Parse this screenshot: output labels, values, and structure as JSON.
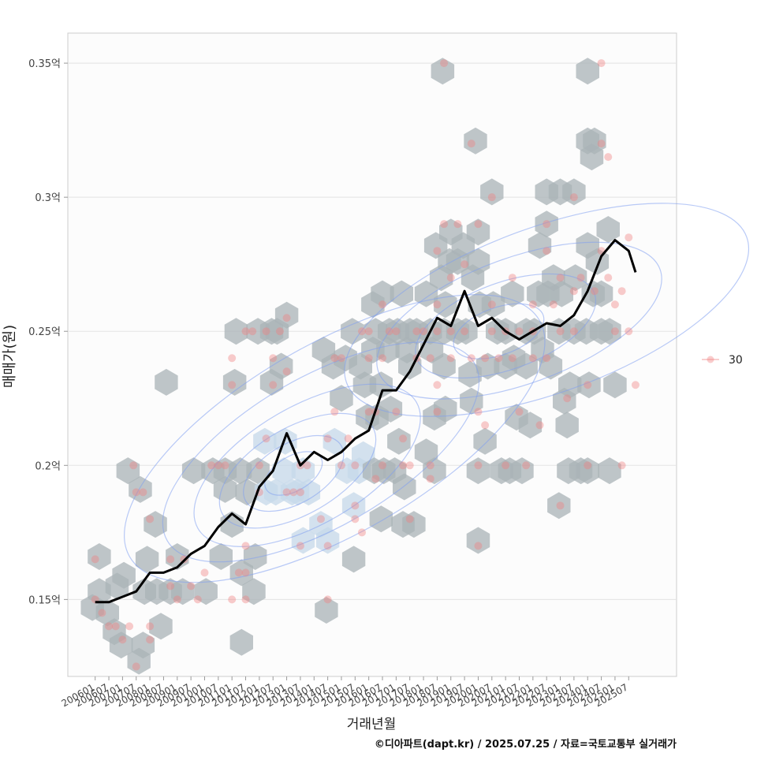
{
  "chart_data": {
    "type": "scatter",
    "xlabel": "거래년월",
    "ylabel": "매매가(원)",
    "caption": "©디아파트(dapt.kr) / 2025.07.25 / 자료=국토교통부 실거래가",
    "x_ticks": [
      "200601",
      "200607",
      "200701",
      "200707",
      "200801",
      "200807",
      "200901",
      "200907",
      "201001",
      "201007",
      "201101",
      "201107",
      "201201",
      "201207",
      "201301",
      "201307",
      "201401",
      "201407",
      "201501",
      "201507",
      "201601",
      "201607",
      "201701",
      "201707",
      "201801",
      "201807",
      "201901",
      "201907",
      "202001",
      "202007",
      "202101",
      "202107",
      "202201",
      "202207",
      "202301",
      "202307",
      "202401",
      "202407",
      "202501",
      "202507"
    ],
    "y_ticks": [
      {
        "value": 0.15,
        "label": "0.15억"
      },
      {
        "value": 0.2,
        "label": "0.2억"
      },
      {
        "value": 0.25,
        "label": "0.25억"
      },
      {
        "value": 0.3,
        "label": "0.3억"
      },
      {
        "value": 0.35,
        "label": "0.35억"
      }
    ],
    "ylim": [
      0.1213,
      0.3612
    ],
    "xlim_index": [
      -2,
      42.5
    ],
    "grid": true,
    "legend": {
      "position": "right",
      "entries": [
        {
          "label": "30",
          "color": "#f08080"
        }
      ]
    },
    "colors": {
      "points": "#f08080",
      "hex": "#a9b3b7",
      "hex_light": "#c6d8ea",
      "contour": "#7f9ef0",
      "line": "#000000"
    },
    "moving_average": [
      [
        0,
        0.149
      ],
      [
        1,
        0.149
      ],
      [
        2,
        0.151
      ],
      [
        3,
        0.153
      ],
      [
        4,
        0.16
      ],
      [
        5,
        0.16
      ],
      [
        6,
        0.162
      ],
      [
        7,
        0.167
      ],
      [
        8,
        0.17
      ],
      [
        9,
        0.177
      ],
      [
        10,
        0.182
      ],
      [
        11,
        0.178
      ],
      [
        12,
        0.192
      ],
      [
        13,
        0.198
      ],
      [
        14,
        0.212
      ],
      [
        15,
        0.2
      ],
      [
        16,
        0.205
      ],
      [
        17,
        0.202
      ],
      [
        18,
        0.205
      ],
      [
        19,
        0.21
      ],
      [
        20,
        0.213
      ],
      [
        21,
        0.228
      ],
      [
        22,
        0.228
      ],
      [
        23,
        0.235
      ],
      [
        24,
        0.245
      ],
      [
        25,
        0.255
      ],
      [
        26,
        0.252
      ],
      [
        27,
        0.265
      ],
      [
        28,
        0.252
      ],
      [
        29,
        0.255
      ],
      [
        30,
        0.25
      ],
      [
        31,
        0.247
      ],
      [
        32,
        0.25
      ],
      [
        33,
        0.253
      ],
      [
        34,
        0.252
      ],
      [
        35,
        0.256
      ],
      [
        36,
        0.265
      ],
      [
        37,
        0.278
      ],
      [
        38,
        0.284
      ],
      [
        39,
        0.28
      ],
      [
        39.5,
        0.272
      ]
    ],
    "points": [
      [
        0,
        0.165
      ],
      [
        0,
        0.15
      ],
      [
        0.5,
        0.145
      ],
      [
        1,
        0.14
      ],
      [
        1.5,
        0.14
      ],
      [
        2,
        0.135
      ],
      [
        2.5,
        0.14
      ],
      [
        3,
        0.125
      ],
      [
        3,
        0.19
      ],
      [
        3.5,
        0.19
      ],
      [
        4,
        0.18
      ],
      [
        4,
        0.14
      ],
      [
        4,
        0.135
      ],
      [
        2.8,
        0.2
      ],
      [
        5.5,
        0.155
      ],
      [
        6,
        0.15
      ],
      [
        6.5,
        0.165
      ],
      [
        5.5,
        0.165
      ],
      [
        7,
        0.155
      ],
      [
        7.5,
        0.15
      ],
      [
        8,
        0.16
      ],
      [
        8.5,
        0.2
      ],
      [
        9,
        0.2
      ],
      [
        9.5,
        0.2
      ],
      [
        10,
        0.15
      ],
      [
        10,
        0.23
      ],
      [
        10,
        0.24
      ],
      [
        10.5,
        0.16
      ],
      [
        11,
        0.17
      ],
      [
        11,
        0.15
      ],
      [
        11,
        0.16
      ],
      [
        11,
        0.25
      ],
      [
        11.5,
        0.25
      ],
      [
        12,
        0.2
      ],
      [
        12,
        0.19
      ],
      [
        12.5,
        0.21
      ],
      [
        13,
        0.24
      ],
      [
        13.5,
        0.25
      ],
      [
        12.5,
        0.25
      ],
      [
        13,
        0.23
      ],
      [
        14,
        0.255
      ],
      [
        14,
        0.235
      ],
      [
        14,
        0.19
      ],
      [
        14.5,
        0.19
      ],
      [
        15,
        0.19
      ],
      [
        15,
        0.2
      ],
      [
        15.5,
        0.2
      ],
      [
        15,
        0.17
      ],
      [
        16.5,
        0.18
      ],
      [
        17,
        0.17
      ],
      [
        17,
        0.21
      ],
      [
        17.5,
        0.22
      ],
      [
        17.5,
        0.24
      ],
      [
        18,
        0.24
      ],
      [
        17,
        0.15
      ],
      [
        18,
        0.2
      ],
      [
        18.5,
        0.21
      ],
      [
        19,
        0.2
      ],
      [
        19,
        0.185
      ],
      [
        19,
        0.18
      ],
      [
        19.5,
        0.175
      ],
      [
        19.5,
        0.25
      ],
      [
        20,
        0.25
      ],
      [
        20,
        0.22
      ],
      [
        20,
        0.24
      ],
      [
        20.5,
        0.22
      ],
      [
        20.5,
        0.195
      ],
      [
        21,
        0.2
      ],
      [
        21,
        0.24
      ],
      [
        21,
        0.26
      ],
      [
        21.5,
        0.25
      ],
      [
        22,
        0.22
      ],
      [
        22,
        0.25
      ],
      [
        22.5,
        0.21
      ],
      [
        22.5,
        0.2
      ],
      [
        23,
        0.18
      ],
      [
        23,
        0.2
      ],
      [
        23.5,
        0.24
      ],
      [
        23.5,
        0.25
      ],
      [
        24,
        0.25
      ],
      [
        24.5,
        0.24
      ],
      [
        24.5,
        0.2
      ],
      [
        24.5,
        0.195
      ],
      [
        25,
        0.22
      ],
      [
        25,
        0.23
      ],
      [
        25,
        0.25
      ],
      [
        25,
        0.26
      ],
      [
        25,
        0.28
      ],
      [
        25.5,
        0.35
      ],
      [
        25.5,
        0.29
      ],
      [
        26,
        0.25
      ],
      [
        26,
        0.24
      ],
      [
        26,
        0.27
      ],
      [
        26.5,
        0.29
      ],
      [
        27,
        0.25
      ],
      [
        27,
        0.275
      ],
      [
        27.5,
        0.32
      ],
      [
        27.5,
        0.24
      ],
      [
        28,
        0.29
      ],
      [
        28,
        0.22
      ],
      [
        28,
        0.2
      ],
      [
        28,
        0.17
      ],
      [
        28.5,
        0.215
      ],
      [
        28.5,
        0.24
      ],
      [
        29,
        0.25
      ],
      [
        29,
        0.26
      ],
      [
        29,
        0.3
      ],
      [
        29.5,
        0.24
      ],
      [
        30,
        0.25
      ],
      [
        30,
        0.2
      ],
      [
        30.5,
        0.24
      ],
      [
        30.5,
        0.27
      ],
      [
        31,
        0.22
      ],
      [
        31,
        0.25
      ],
      [
        31.5,
        0.2
      ],
      [
        32,
        0.25
      ],
      [
        32,
        0.26
      ],
      [
        32,
        0.24
      ],
      [
        32.5,
        0.215
      ],
      [
        33,
        0.29
      ],
      [
        33,
        0.28
      ],
      [
        33,
        0.24
      ],
      [
        33.5,
        0.26
      ],
      [
        34,
        0.27
      ],
      [
        34,
        0.25
      ],
      [
        34,
        0.185
      ],
      [
        34.5,
        0.225
      ],
      [
        35,
        0.25
      ],
      [
        35,
        0.265
      ],
      [
        35,
        0.3
      ],
      [
        35.5,
        0.27
      ],
      [
        36,
        0.23
      ],
      [
        36,
        0.2
      ],
      [
        36.5,
        0.265
      ],
      [
        37,
        0.35
      ],
      [
        37,
        0.32
      ],
      [
        37,
        0.28
      ],
      [
        37.5,
        0.315
      ],
      [
        37.5,
        0.27
      ],
      [
        38,
        0.26
      ],
      [
        38,
        0.25
      ],
      [
        38.5,
        0.265
      ],
      [
        38.5,
        0.2
      ],
      [
        39,
        0.285
      ],
      [
        39,
        0.25
      ],
      [
        39.5,
        0.23
      ]
    ],
    "hexbins": [
      [
        -0.2,
        0.147
      ],
      [
        0.3,
        0.166
      ],
      [
        0.3,
        0.153
      ],
      [
        0.9,
        0.145
      ],
      [
        1.4,
        0.138
      ],
      [
        1.6,
        0.155
      ],
      [
        1.9,
        0.133
      ],
      [
        2.4,
        0.198
      ],
      [
        2.1,
        0.159
      ],
      [
        3.2,
        0.127
      ],
      [
        3.3,
        0.191
      ],
      [
        3.5,
        0.133
      ],
      [
        3.8,
        0.165
      ],
      [
        3.6,
        0.153
      ],
      [
        4.4,
        0.178
      ],
      [
        4.5,
        0.153
      ],
      [
        4.8,
        0.14
      ],
      [
        5.2,
        0.231
      ],
      [
        5.5,
        0.153
      ],
      [
        6.0,
        0.166
      ],
      [
        6.4,
        0.153
      ],
      [
        7.2,
        0.198
      ],
      [
        8.1,
        0.153
      ],
      [
        8.6,
        0.198
      ],
      [
        9.2,
        0.166
      ],
      [
        9.5,
        0.198
      ],
      [
        9.5,
        0.191
      ],
      [
        10.0,
        0.178
      ],
      [
        10.2,
        0.231
      ],
      [
        10.3,
        0.25
      ],
      [
        10.6,
        0.198
      ],
      [
        10.7,
        0.16
      ],
      [
        10.7,
        0.134
      ],
      [
        11.1,
        0.19
      ],
      [
        11.6,
        0.153
      ],
      [
        11.7,
        0.166
      ],
      [
        11.9,
        0.198
      ],
      [
        11.9,
        0.25
      ],
      [
        12.4,
        0.209
      ],
      [
        12.5,
        0.19
      ],
      [
        12.9,
        0.231
      ],
      [
        12.9,
        0.25
      ],
      [
        13.2,
        0.19
      ],
      [
        13.3,
        0.25
      ],
      [
        13.6,
        0.237
      ],
      [
        13.8,
        0.198
      ],
      [
        13.9,
        0.209
      ],
      [
        14.0,
        0.256
      ],
      [
        14.4,
        0.19
      ],
      [
        14.8,
        0.19
      ],
      [
        15.2,
        0.198
      ],
      [
        15.2,
        0.172
      ],
      [
        15.6,
        0.19
      ],
      [
        16.5,
        0.178
      ],
      [
        16.7,
        0.243
      ],
      [
        16.9,
        0.146
      ],
      [
        17.0,
        0.172
      ],
      [
        17.4,
        0.237
      ],
      [
        17.5,
        0.209
      ],
      [
        18.0,
        0.225
      ],
      [
        18.3,
        0.24
      ],
      [
        18.4,
        0.198
      ],
      [
        18.8,
        0.25
      ],
      [
        18.9,
        0.185
      ],
      [
        18.9,
        0.165
      ],
      [
        19.3,
        0.198
      ],
      [
        19.4,
        0.237
      ],
      [
        19.6,
        0.204
      ],
      [
        19.7,
        0.23
      ],
      [
        19.9,
        0.218
      ],
      [
        20.3,
        0.26
      ],
      [
        20.3,
        0.243
      ],
      [
        20.4,
        0.198
      ],
      [
        20.5,
        0.25
      ],
      [
        20.6,
        0.218
      ],
      [
        20.9,
        0.23
      ],
      [
        20.9,
        0.18
      ],
      [
        21.0,
        0.264
      ],
      [
        21.1,
        0.198
      ],
      [
        21.4,
        0.243
      ],
      [
        21.5,
        0.25
      ],
      [
        21.6,
        0.221
      ],
      [
        21.9,
        0.198
      ],
      [
        22.1,
        0.25
      ],
      [
        22.2,
        0.209
      ],
      [
        22.4,
        0.264
      ],
      [
        22.5,
        0.178
      ],
      [
        22.6,
        0.192
      ],
      [
        22.8,
        0.243
      ],
      [
        23.0,
        0.25
      ],
      [
        23.0,
        0.237
      ],
      [
        23.3,
        0.178
      ],
      [
        23.5,
        0.25
      ],
      [
        24.2,
        0.264
      ],
      [
        24.2,
        0.205
      ],
      [
        24.5,
        0.25
      ],
      [
        24.6,
        0.243
      ],
      [
        24.8,
        0.198
      ],
      [
        24.8,
        0.218
      ],
      [
        24.9,
        0.282
      ],
      [
        25.3,
        0.27
      ],
      [
        25.4,
        0.347
      ],
      [
        25.5,
        0.25
      ],
      [
        25.5,
        0.237
      ],
      [
        25.6,
        0.221
      ],
      [
        25.6,
        0.26
      ],
      [
        25.9,
        0.276
      ],
      [
        26.0,
        0.287
      ],
      [
        26.5,
        0.276
      ],
      [
        26.5,
        0.25
      ],
      [
        26.9,
        0.282
      ],
      [
        27.1,
        0.25
      ],
      [
        27.4,
        0.234
      ],
      [
        27.5,
        0.224
      ],
      [
        27.6,
        0.27
      ],
      [
        27.8,
        0.321
      ],
      [
        28.0,
        0.287
      ],
      [
        28.0,
        0.276
      ],
      [
        28.1,
        0.26
      ],
      [
        28.0,
        0.198
      ],
      [
        28.0,
        0.172
      ],
      [
        28.5,
        0.209
      ],
      [
        28.7,
        0.237
      ],
      [
        29.0,
        0.302
      ],
      [
        29.1,
        0.26
      ],
      [
        29.4,
        0.25
      ],
      [
        29.7,
        0.198
      ],
      [
        30.0,
        0.25
      ],
      [
        30.0,
        0.237
      ],
      [
        30.3,
        0.198
      ],
      [
        30.5,
        0.264
      ],
      [
        30.6,
        0.24
      ],
      [
        30.8,
        0.218
      ],
      [
        31.2,
        0.198
      ],
      [
        31.5,
        0.25
      ],
      [
        31.5,
        0.237
      ],
      [
        31.8,
        0.215
      ],
      [
        32.1,
        0.25
      ],
      [
        32.4,
        0.264
      ],
      [
        32.5,
        0.282
      ],
      [
        32.7,
        0.243
      ],
      [
        33.0,
        0.302
      ],
      [
        33.0,
        0.29
      ],
      [
        33.1,
        0.264
      ],
      [
        33.3,
        0.237
      ],
      [
        33.5,
        0.27
      ],
      [
        33.9,
        0.25
      ],
      [
        33.9,
        0.185
      ],
      [
        34.0,
        0.302
      ],
      [
        34.1,
        0.264
      ],
      [
        34.3,
        0.224
      ],
      [
        34.5,
        0.215
      ],
      [
        34.6,
        0.198
      ],
      [
        34.7,
        0.23
      ],
      [
        35.0,
        0.302
      ],
      [
        35.0,
        0.25
      ],
      [
        35.1,
        0.27
      ],
      [
        35.5,
        0.198
      ],
      [
        35.9,
        0.25
      ],
      [
        36.0,
        0.347
      ],
      [
        36.0,
        0.321
      ],
      [
        36.0,
        0.282
      ],
      [
        36.0,
        0.198
      ],
      [
        36.1,
        0.23
      ],
      [
        36.3,
        0.315
      ],
      [
        36.4,
        0.264
      ],
      [
        36.5,
        0.321
      ],
      [
        36.7,
        0.276
      ],
      [
        37.0,
        0.25
      ],
      [
        37.0,
        0.264
      ],
      [
        37.5,
        0.288
      ],
      [
        37.6,
        0.198
      ],
      [
        37.6,
        0.25
      ],
      [
        38.0,
        0.23
      ]
    ]
  }
}
